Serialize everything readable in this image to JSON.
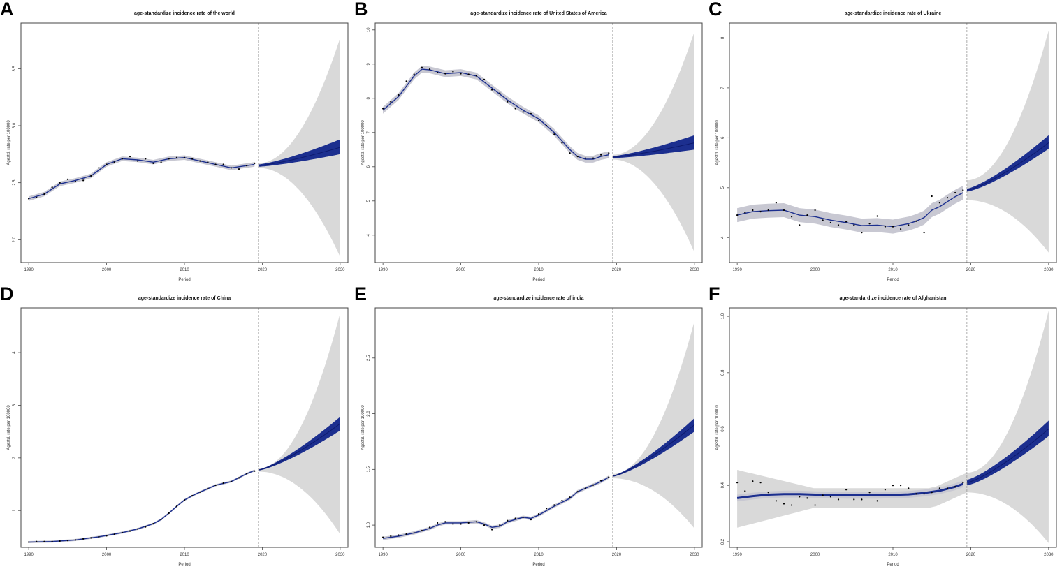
{
  "chart_data": [
    {
      "letter": "A",
      "type": "line",
      "title": "age-standardize incidence rate of the world",
      "xlabel": "Period",
      "ylabel": "Agestd. rate per 100000",
      "xlim": [
        1989,
        2031
      ],
      "ylim": [
        1.8,
        3.9
      ],
      "xticks": [
        1990,
        2000,
        2010,
        2020,
        2030
      ],
      "yticks": [
        2.0,
        2.5,
        3.0,
        3.5
      ],
      "vline": 2019.5,
      "observed": {
        "x": [
          1990,
          1991,
          1992,
          1993,
          1994,
          1995,
          1996,
          1997,
          1998,
          1999,
          2000,
          2001,
          2002,
          2003,
          2004,
          2005,
          2006,
          2007,
          2008,
          2009,
          2010,
          2011,
          2012,
          2013,
          2014,
          2015,
          2016,
          2017,
          2018,
          2019
        ],
        "y": [
          2.36,
          2.37,
          2.4,
          2.46,
          2.5,
          2.53,
          2.51,
          2.52,
          2.56,
          2.63,
          2.66,
          2.68,
          2.71,
          2.73,
          2.69,
          2.71,
          2.67,
          2.68,
          2.71,
          2.72,
          2.72,
          2.71,
          2.69,
          2.68,
          2.66,
          2.66,
          2.63,
          2.62,
          2.65,
          2.67
        ]
      },
      "fitted": {
        "x": [
          1990,
          1992,
          1994,
          1996,
          1998,
          2000,
          2002,
          2004,
          2006,
          2008,
          2010,
          2012,
          2014,
          2016,
          2018,
          2019
        ],
        "y": [
          2.36,
          2.4,
          2.49,
          2.52,
          2.56,
          2.66,
          2.71,
          2.7,
          2.68,
          2.71,
          2.72,
          2.69,
          2.66,
          2.63,
          2.65,
          2.66
        ]
      },
      "fitted_band": 0.02,
      "forecast": {
        "x": [
          2019.5,
          2030
        ],
        "mean_start": 2.65,
        "mean_end": 2.81,
        "inner_low_end": 2.75,
        "inner_high_end": 2.88,
        "outer_low_end": 1.85,
        "outer_high_end": 3.77,
        "outer_start_half": 0.02,
        "inner_start_half": 0.01
      }
    },
    {
      "letter": "B",
      "type": "line",
      "title": "age-standardize incidence rate of United States of America",
      "xlabel": "Period",
      "ylabel": "Agestd. rate per 100000",
      "xlim": [
        1989,
        2031
      ],
      "ylim": [
        3.2,
        10.2
      ],
      "xticks": [
        1990,
        2000,
        2010,
        2020,
        2030
      ],
      "yticks": [
        4,
        5,
        6,
        7,
        8,
        9,
        10
      ],
      "vline": 2019.5,
      "observed": {
        "x": [
          1990,
          1991,
          1992,
          1993,
          1994,
          1995,
          1996,
          1997,
          1998,
          1999,
          2000,
          2001,
          2002,
          2003,
          2004,
          2005,
          2006,
          2007,
          2008,
          2009,
          2010,
          2011,
          2012,
          2013,
          2014,
          2015,
          2016,
          2017,
          2018,
          2019
        ],
        "y": [
          7.7,
          7.9,
          8.1,
          8.5,
          8.7,
          8.9,
          8.85,
          8.75,
          8.72,
          8.78,
          8.72,
          8.7,
          8.66,
          8.55,
          8.25,
          8.15,
          7.9,
          7.7,
          7.6,
          7.55,
          7.35,
          7.2,
          6.95,
          6.7,
          6.4,
          6.3,
          6.25,
          6.25,
          6.35,
          6.4
        ]
      },
      "fitted": {
        "x": [
          1990,
          1992,
          1994,
          1995,
          1996,
          1998,
          2000,
          2002,
          2004,
          2006,
          2008,
          2010,
          2012,
          2014,
          2015,
          2016,
          2017,
          2018,
          2019
        ],
        "y": [
          7.65,
          8.05,
          8.65,
          8.85,
          8.83,
          8.72,
          8.75,
          8.65,
          8.3,
          7.95,
          7.65,
          7.4,
          7.0,
          6.5,
          6.3,
          6.22,
          6.22,
          6.3,
          6.35
        ]
      },
      "fitted_band": 0.1,
      "forecast": {
        "x": [
          2019.5,
          2030
        ],
        "mean_start": 6.28,
        "mean_end": 6.7,
        "inner_low_end": 6.5,
        "inner_high_end": 6.92,
        "outer_low_end": 3.5,
        "outer_high_end": 9.95,
        "outer_start_half": 0.07,
        "inner_start_half": 0.03
      }
    },
    {
      "letter": "C",
      "type": "line",
      "title": "age-standardize incidence rate of Ukraine",
      "xlabel": "Period",
      "ylabel": "Agestd. rate per 100000",
      "xlim": [
        1989,
        2031
      ],
      "ylim": [
        3.5,
        8.3
      ],
      "xticks": [
        1990,
        2000,
        2010,
        2020,
        2030
      ],
      "yticks": [
        4,
        5,
        6,
        7,
        8
      ],
      "vline": 2019.5,
      "observed": {
        "x": [
          1990,
          1991,
          1992,
          1993,
          1994,
          1995,
          1996,
          1997,
          1998,
          1999,
          2000,
          2001,
          2002,
          2003,
          2004,
          2005,
          2006,
          2007,
          2008,
          2009,
          2010,
          2011,
          2012,
          2013,
          2014,
          2015,
          2016,
          2017,
          2018,
          2019
        ],
        "y": [
          4.45,
          4.5,
          4.55,
          4.52,
          4.55,
          4.7,
          4.55,
          4.42,
          4.25,
          4.45,
          4.55,
          4.35,
          4.3,
          4.25,
          4.32,
          4.25,
          4.1,
          4.28,
          4.43,
          4.22,
          4.22,
          4.17,
          4.25,
          4.33,
          4.1,
          4.83,
          4.7,
          4.8,
          4.9,
          4.95
        ]
      },
      "fitted": {
        "x": [
          1990,
          1992,
          1994,
          1996,
          1998,
          2000,
          2002,
          2004,
          2006,
          2008,
          2010,
          2012,
          2013,
          2014,
          2015,
          2016,
          2017,
          2018,
          2019
        ],
        "y": [
          4.45,
          4.52,
          4.54,
          4.55,
          4.45,
          4.42,
          4.35,
          4.3,
          4.24,
          4.25,
          4.22,
          4.28,
          4.33,
          4.4,
          4.55,
          4.62,
          4.72,
          4.82,
          4.9
        ]
      },
      "fitted_band": 0.14,
      "forecast": {
        "x": [
          2019.5,
          2030
        ],
        "mean_start": 4.95,
        "mean_end": 5.9,
        "inner_low_end": 5.78,
        "inner_high_end": 6.05,
        "outer_low_end": 3.7,
        "outer_high_end": 8.15,
        "outer_start_half": 0.2,
        "inner_start_half": 0.03
      }
    },
    {
      "letter": "D",
      "type": "line",
      "title": "age-standardize incidence rate of China",
      "xlabel": "Period",
      "ylabel": "Agestd. rate per 100000",
      "xlim": [
        1989,
        2031
      ],
      "ylim": [
        0.3,
        4.85
      ],
      "xticks": [
        1990,
        2000,
        2010,
        2020,
        2030
      ],
      "yticks": [
        1,
        2,
        3,
        4
      ],
      "vline": 2019.5,
      "observed": {
        "x": [
          1990,
          1991,
          1992,
          1993,
          1994,
          1995,
          1996,
          1997,
          1998,
          1999,
          2000,
          2001,
          2002,
          2003,
          2004,
          2005,
          2006,
          2007,
          2008,
          2009,
          2010,
          2011,
          2012,
          2013,
          2014,
          2015,
          2016,
          2017,
          2018,
          2019
        ],
        "y": [
          0.4,
          0.41,
          0.41,
          0.41,
          0.42,
          0.43,
          0.44,
          0.46,
          0.48,
          0.5,
          0.52,
          0.55,
          0.58,
          0.61,
          0.65,
          0.69,
          0.75,
          0.83,
          0.95,
          1.08,
          1.2,
          1.28,
          1.35,
          1.42,
          1.48,
          1.52,
          1.55,
          1.62,
          1.7,
          1.75
        ]
      },
      "fitted": {
        "x": [
          1990,
          1993,
          1996,
          1999,
          2002,
          2004,
          2006,
          2007,
          2008,
          2009,
          2010,
          2011,
          2012,
          2014,
          2016,
          2018,
          2019
        ],
        "y": [
          0.4,
          0.41,
          0.44,
          0.5,
          0.58,
          0.65,
          0.75,
          0.83,
          0.95,
          1.08,
          1.2,
          1.28,
          1.35,
          1.48,
          1.55,
          1.7,
          1.76
        ]
      },
      "fitted_band": 0.02,
      "forecast": {
        "x": [
          2019.5,
          2030
        ],
        "mean_start": 1.77,
        "mean_end": 2.65,
        "inner_low_end": 2.52,
        "inner_high_end": 2.78,
        "outer_low_end": 0.55,
        "outer_high_end": 4.75,
        "outer_start_half": 0.03,
        "inner_start_half": 0.01
      }
    },
    {
      "letter": "E",
      "type": "line",
      "title": "age-standardize incidence rate of india",
      "xlabel": "Period",
      "ylabel": "Agestd. rate per 100000",
      "xlim": [
        1989,
        2031
      ],
      "ylim": [
        0.8,
        2.95
      ],
      "xticks": [
        1990,
        2000,
        2010,
        2020,
        2030
      ],
      "yticks": [
        1.0,
        1.5,
        2.0,
        2.5
      ],
      "vline": 2019.5,
      "observed": {
        "x": [
          1990,
          1991,
          1992,
          1993,
          1994,
          1995,
          1996,
          1997,
          1998,
          1999,
          2000,
          2001,
          2002,
          2003,
          2004,
          2005,
          2006,
          2007,
          2008,
          2009,
          2010,
          2011,
          2012,
          2013,
          2014,
          2015,
          2016,
          2017,
          2018,
          2019
        ],
        "y": [
          0.89,
          0.9,
          0.91,
          0.92,
          0.93,
          0.95,
          0.98,
          1.02,
          1.03,
          1.01,
          1.01,
          1.02,
          1.03,
          1.0,
          0.96,
          1.0,
          1.04,
          1.06,
          1.07,
          1.05,
          1.1,
          1.15,
          1.18,
          1.22,
          1.25,
          1.3,
          1.33,
          1.36,
          1.4,
          1.43
        ]
      },
      "fitted": {
        "x": [
          1990,
          1992,
          1994,
          1996,
          1997,
          1998,
          2000,
          2002,
          2003,
          2004,
          2005,
          2006,
          2008,
          2009,
          2010,
          2012,
          2014,
          2015,
          2016,
          2018,
          2019
        ],
        "y": [
          0.88,
          0.9,
          0.93,
          0.97,
          1.0,
          1.02,
          1.02,
          1.03,
          1.01,
          0.98,
          0.99,
          1.03,
          1.07,
          1.06,
          1.09,
          1.17,
          1.24,
          1.3,
          1.33,
          1.39,
          1.43
        ]
      },
      "fitted_band": 0.015,
      "forecast": {
        "x": [
          2019.5,
          2030
        ],
        "mean_start": 1.44,
        "mean_end": 1.9,
        "inner_low_end": 1.84,
        "inner_high_end": 1.96,
        "outer_low_end": 0.97,
        "outer_high_end": 2.83,
        "outer_start_half": 0.02,
        "inner_start_half": 0.005
      }
    },
    {
      "letter": "F",
      "type": "line",
      "title": "age-standardize incidence rate of Afghanistan",
      "xlabel": "Period",
      "ylabel": "Agestd. rate per 100000",
      "xlim": [
        1989,
        2031
      ],
      "ylim": [
        0.18,
        1.03
      ],
      "xticks": [
        1990,
        2000,
        2010,
        2020,
        2030
      ],
      "yticks": [
        0.2,
        0.4,
        0.6,
        0.8,
        1.0
      ],
      "vline": 2019.5,
      "observed": {
        "x": [
          1990,
          1991,
          1992,
          1993,
          1994,
          1995,
          1996,
          1997,
          1998,
          1999,
          2000,
          2001,
          2002,
          2003,
          2004,
          2005,
          2006,
          2007,
          2008,
          2009,
          2010,
          2011,
          2012,
          2013,
          2014,
          2015,
          2016,
          2017,
          2018,
          2019
        ],
        "y": [
          0.41,
          0.38,
          0.415,
          0.41,
          0.375,
          0.345,
          0.335,
          0.33,
          0.36,
          0.355,
          0.33,
          0.365,
          0.36,
          0.35,
          0.385,
          0.35,
          0.35,
          0.375,
          0.345,
          0.385,
          0.4,
          0.4,
          0.39,
          0.37,
          0.37,
          0.375,
          0.39,
          0.39,
          0.395,
          0.41
        ]
      },
      "fitted": {
        "x": [
          1990,
          1992,
          1994,
          1996,
          1998,
          2000,
          2002,
          2004,
          2006,
          2008,
          2010,
          2012,
          2014,
          2016,
          2018,
          2019
        ],
        "y": [
          0.355,
          0.362,
          0.367,
          0.369,
          0.369,
          0.367,
          0.366,
          0.365,
          0.365,
          0.365,
          0.366,
          0.368,
          0.373,
          0.381,
          0.395,
          0.405
        ]
      },
      "fitted_band": 0.012,
      "forecast": {
        "x": [
          2019.5,
          2030
        ],
        "mean_start": 0.41,
        "mean_end": 0.6,
        "inner_low_end": 0.575,
        "inner_high_end": 0.63,
        "outer_low_end": 0.195,
        "outer_high_end": 1.02,
        "outer_start_half": 0.035,
        "inner_start_half": 0.01
      },
      "band_left": {
        "low_start": 0.25,
        "high_start": 0.455,
        "low_mid": 0.32,
        "high_mid": 0.39
      }
    }
  ],
  "colors": {
    "forecast_band": "#d9d9d9",
    "inner_band": "#1c2f8f",
    "fitted_band": "#c8c8d2",
    "fitted_line": "#1c2f8f",
    "points": "#000000",
    "vline": "#999999",
    "frame": "#444444"
  }
}
